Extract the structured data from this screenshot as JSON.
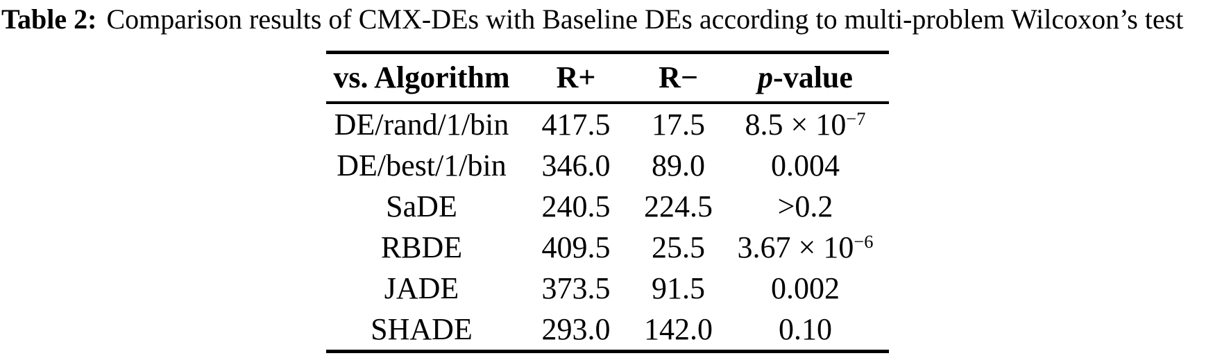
{
  "caption": {
    "label": "Table 2:",
    "text": "Comparison results of CMX-DEs with Baseline DEs according to multi-problem Wilcoxon’s test"
  },
  "table": {
    "header": {
      "algorithm": "vs. Algorithm",
      "r_plus": "R+",
      "r_minus": "R−",
      "p_value_italic": "p",
      "p_value_rest": "-value"
    },
    "rows": [
      {
        "algorithm": "DE/rand/1/bin",
        "r_plus": "417.5",
        "r_minus": "17.5",
        "p_value": "8.5 × 10",
        "p_exponent": "−7"
      },
      {
        "algorithm": "DE/best/1/bin",
        "r_plus": "346.0",
        "r_minus": "89.0",
        "p_value": "0.004",
        "p_exponent": ""
      },
      {
        "algorithm": "SaDE",
        "r_plus": "240.5",
        "r_minus": "224.5",
        "p_value": ">0.2",
        "p_exponent": ""
      },
      {
        "algorithm": "RBDE",
        "r_plus": "409.5",
        "r_minus": "25.5",
        "p_value": "3.67 × 10",
        "p_exponent": "−6"
      },
      {
        "algorithm": "JADE",
        "r_plus": "373.5",
        "r_minus": "91.5",
        "p_value": "0.002",
        "p_exponent": ""
      },
      {
        "algorithm": "SHADE",
        "r_plus": "293.0",
        "r_minus": "142.0",
        "p_value": "0.10",
        "p_exponent": ""
      }
    ],
    "text_color": "#000000",
    "background": "#ffffff"
  }
}
